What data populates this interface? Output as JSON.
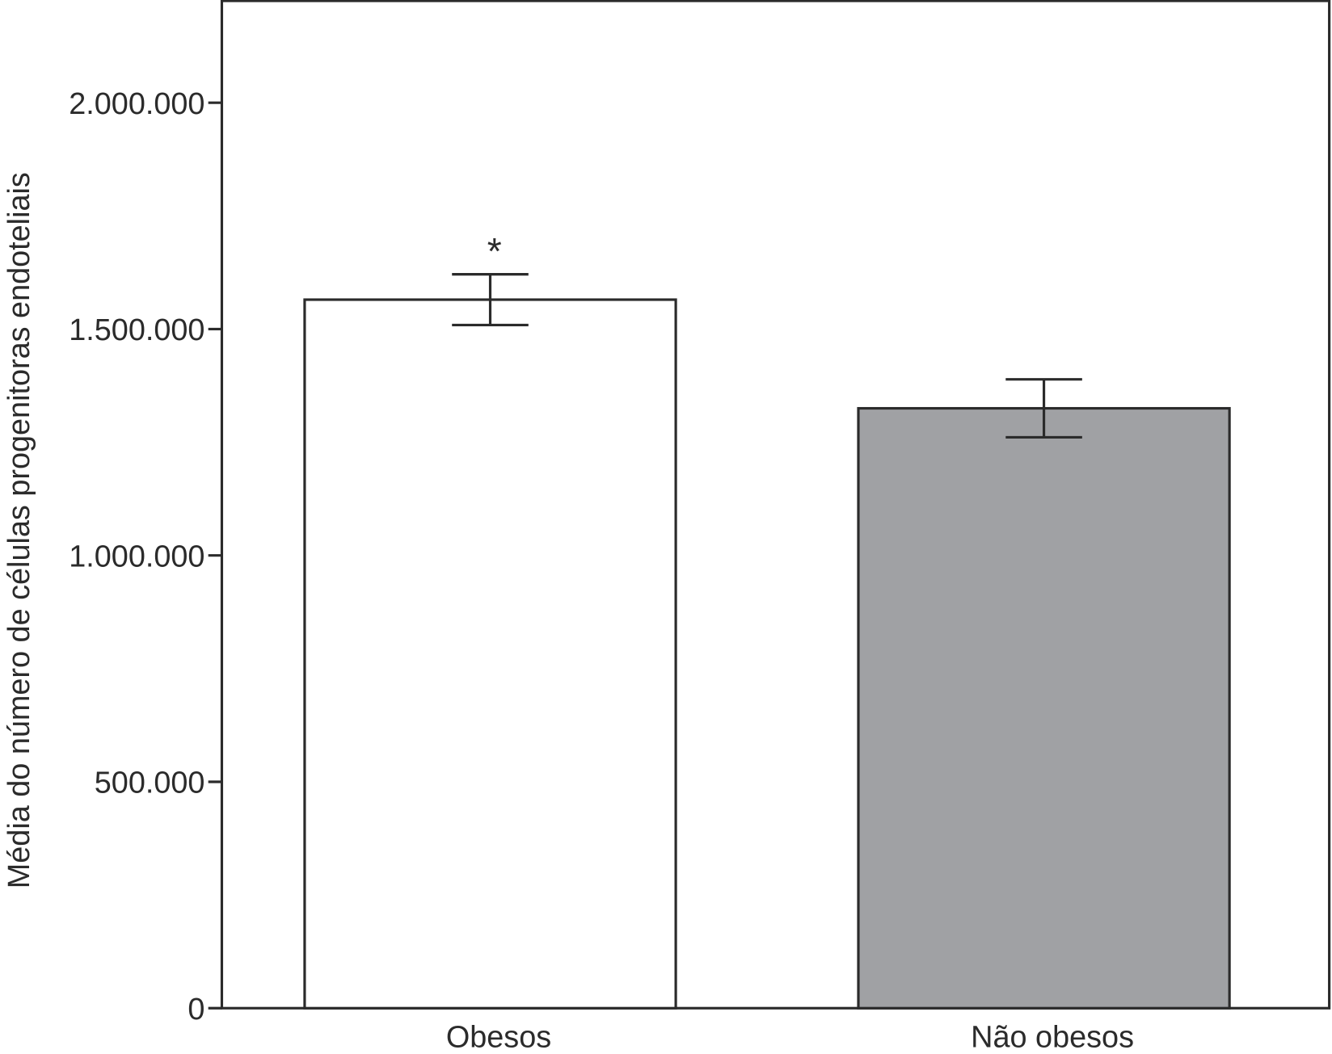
{
  "chart_data": {
    "type": "bar",
    "ylabel": "Média do número de células progenitoras endoteliais",
    "categories": [
      "Obesos",
      "Não obesos"
    ],
    "values": [
      1565000,
      1325000
    ],
    "errors": [
      56000,
      64000
    ],
    "colors": [
      "#ffffff",
      "#a0a1a4"
    ],
    "annotations": [
      {
        "text": "*",
        "category": 0
      }
    ],
    "ylim": [
      0,
      2225000
    ],
    "yticks": [
      0,
      {
        "value": 500000,
        "label": "500.000"
      },
      {
        "value": 1000000,
        "label": "1.000.000"
      },
      {
        "value": 1500000,
        "label": "1.500.000"
      },
      {
        "value": 2000000,
        "label": "2.000.000"
      }
    ],
    "grid": false
  }
}
